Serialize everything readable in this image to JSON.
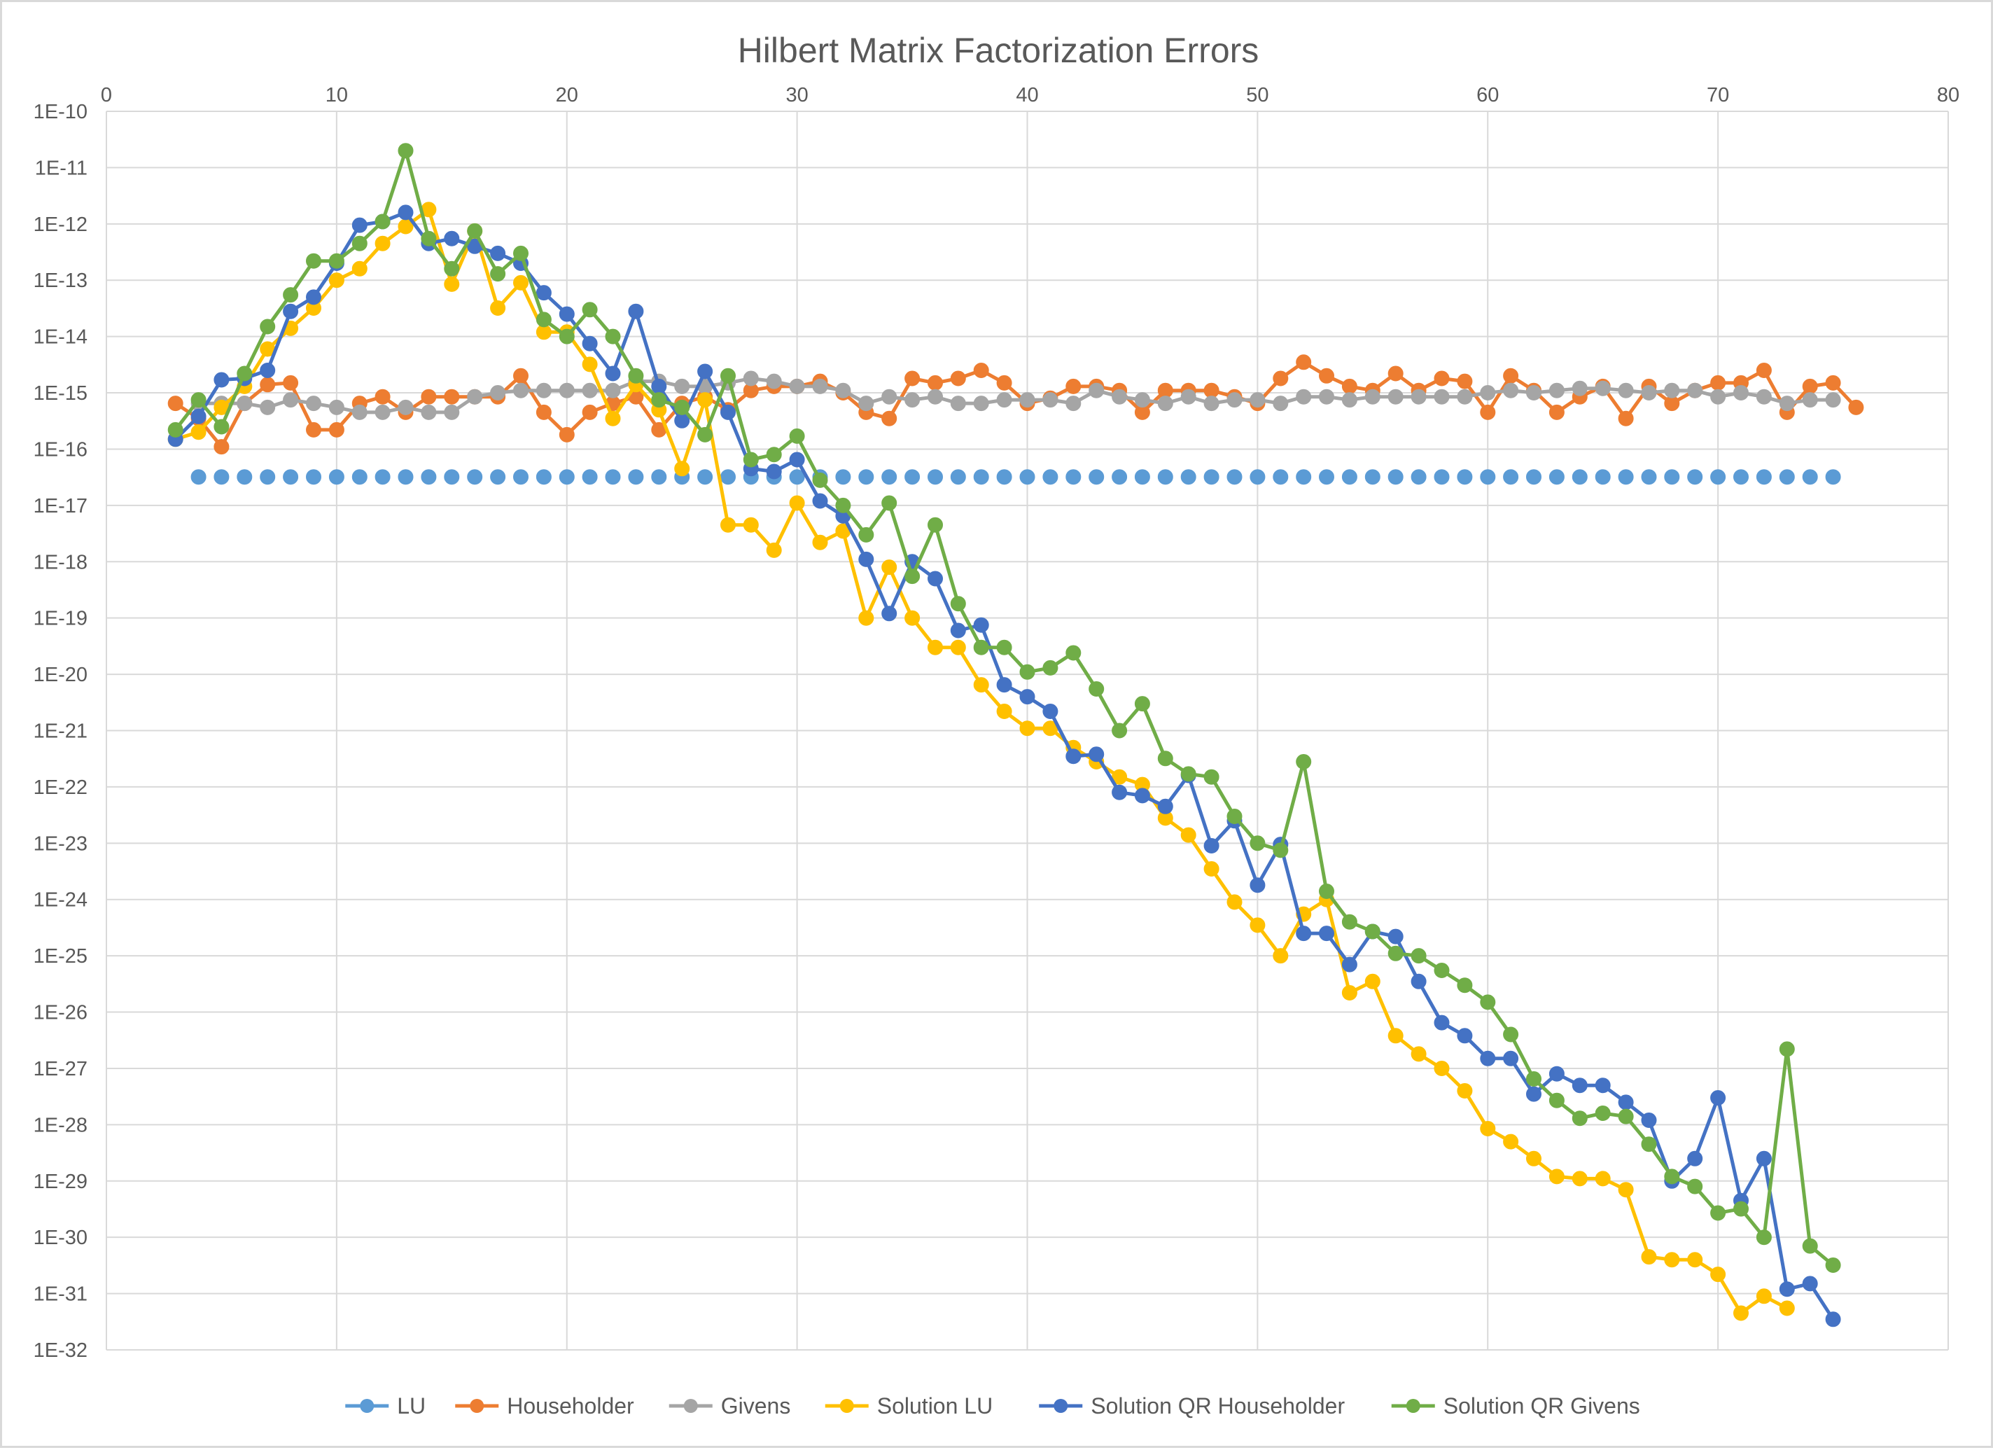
{
  "chart_data": {
    "type": "line",
    "title": "Hilbert Matrix Factorization Errors",
    "xlabel": "",
    "ylabel": "",
    "xlim": [
      0,
      80
    ],
    "x_ticks": [
      0,
      10,
      20,
      30,
      40,
      50,
      60,
      70,
      80
    ],
    "x_tick_labels": [
      "0",
      "10",
      "20",
      "30",
      "40",
      "50",
      "60",
      "70",
      "80"
    ],
    "y_scale": "log",
    "ylim": [
      1e-32,
      1e-10
    ],
    "y_ticks": [
      1e-10,
      1e-11,
      1e-12,
      1e-13,
      1e-14,
      1e-15,
      1e-16,
      1e-17,
      1e-18,
      1e-19,
      1e-20,
      1e-21,
      1e-22,
      1e-23,
      1e-24,
      1e-25,
      1e-26,
      1e-27,
      1e-28,
      1e-29,
      1e-30,
      1e-31,
      1e-32
    ],
    "y_tick_labels": [
      "1E-10",
      "1E-11",
      "1E-12",
      "1E-13",
      "1E-14",
      "1E-15",
      "1E-16",
      "1E-17",
      "1E-18",
      "1E-19",
      "1E-20",
      "1E-21",
      "1E-22",
      "1E-23",
      "1E-24",
      "1E-25",
      "1E-26",
      "1E-27",
      "1E-28",
      "1E-29",
      "1E-30",
      "1E-31",
      "1E-32"
    ],
    "grid": true,
    "legend_position": "bottom",
    "series": [
      {
        "name": "LU",
        "color": "#5b9bd5",
        "line": false,
        "x_start": 4,
        "y": [
          "3.2e-17",
          "3.2e-17",
          "3.2e-17",
          "3.2e-17",
          "3.2e-17",
          "3.2e-17",
          "3.2e-17",
          "3.2e-17",
          "3.2e-17",
          "3.2e-17",
          "3.2e-17",
          "3.2e-17",
          "3.2e-17",
          "3.2e-17",
          "3.2e-17",
          "3.2e-17",
          "3.2e-17",
          "3.2e-17",
          "3.2e-17",
          "3.2e-17",
          "3.2e-17",
          "3.2e-17",
          "3.2e-17",
          "3.2e-17",
          "3.2e-17",
          "3.2e-17",
          "3.2e-17",
          "3.2e-17",
          "3.2e-17",
          "3.2e-17",
          "3.2e-17",
          "3.2e-17",
          "3.2e-17",
          "3.2e-17",
          "3.2e-17",
          "3.2e-17",
          "3.2e-17",
          "3.2e-17",
          "3.2e-17",
          "3.2e-17",
          "3.2e-17",
          "3.2e-17",
          "3.2e-17",
          "3.2e-17",
          "3.2e-17",
          "3.2e-17",
          "3.2e-17",
          "3.2e-17",
          "3.2e-17",
          "3.2e-17",
          "3.2e-17",
          "3.2e-17",
          "3.2e-17",
          "3.2e-17",
          "3.2e-17",
          "3.2e-17",
          "3.2e-17",
          "3.2e-17",
          "3.2e-17",
          "3.2e-17",
          "3.2e-17",
          "3.2e-17",
          "3.2e-17",
          "3.2e-17",
          "3.2e-17",
          "3.2e-17",
          "3.2e-17",
          "3.2e-17",
          "3.2e-17",
          "3.2e-17",
          "3.2e-17",
          "3.2e-17"
        ]
      },
      {
        "name": "Householder",
        "color": "#ed7d31",
        "line": true,
        "x_start": 3,
        "y": [
          "6.5e-16",
          "3.5e-16",
          "1.1e-16",
          "6.5e-16",
          "1.4e-15",
          "1.5e-15",
          "2.2e-16",
          "2.2e-16",
          "6.5e-16",
          "8.5e-16",
          "4.5e-16",
          "8.5e-16",
          "8.5e-16",
          "8.5e-16",
          "8.5e-16",
          "2e-15",
          "4.5e-16",
          "1.8e-16",
          "4.5e-16",
          "6.5e-16",
          "8.5e-16",
          "2.2e-16",
          "6.5e-16",
          "8.5e-16",
          "5e-16",
          "1.1e-15",
          "1.3e-15",
          "1.3e-15",
          "1.6e-15",
          "1e-15",
          "4.5e-16",
          "3.5e-16",
          "1.8e-15",
          "1.5e-15",
          "1.8e-15",
          "2.5e-15",
          "1.5e-15",
          "6.5e-16",
          "8e-16",
          "1.3e-15",
          "1.3e-15",
          "1.1e-15",
          "4.5e-16",
          "1.1e-15",
          "1.1e-15",
          "1.1e-15",
          "8.5e-16",
          "6.5e-16",
          "1.8e-15",
          "3.5e-15",
          "2e-15",
          "1.3e-15",
          "1.1e-15",
          "2.2e-15",
          "1.1e-15",
          "1.8e-15",
          "1.6e-15",
          "4.5e-16",
          "2e-15",
          "1.1e-15",
          "4.5e-16",
          "8.5e-16",
          "1.3e-15",
          "3.5e-16",
          "1.3e-15",
          "6.5e-16",
          "1.1e-15",
          "1.5e-15",
          "1.5e-15",
          "2.5e-15",
          "4.5e-16",
          "1.3e-15",
          "1.5e-15",
          "5.5e-16"
        ]
      },
      {
        "name": "Givens",
        "color": "#a5a5a5",
        "line": true,
        "x_start": 4,
        "y": [
          "6.5e-16",
          "6.5e-16",
          "6.5e-16",
          "5.5e-16",
          "7.5e-16",
          "6.5e-16",
          "5.5e-16",
          "4.5e-16",
          "4.5e-16",
          "5.5e-16",
          "4.5e-16",
          "4.5e-16",
          "8.5e-16",
          "1e-15",
          "1.1e-15",
          "1.1e-15",
          "1.1e-15",
          "1.1e-15",
          "1.1e-15",
          "1.6e-15",
          "1.6e-15",
          "1.3e-15",
          "1.3e-15",
          "1.5e-15",
          "1.8e-15",
          "1.6e-15",
          "1.3e-15",
          "1.3e-15",
          "1.1e-15",
          "6.5e-16",
          "8.5e-16",
          "7.5e-16",
          "8.5e-16",
          "6.5e-16",
          "6.5e-16",
          "7.5e-16",
          "7.5e-16",
          "7.5e-16",
          "6.5e-16",
          "1.1e-15",
          "8.5e-16",
          "7.5e-16",
          "6.5e-16",
          "8.5e-16",
          "6.5e-16",
          "7.5e-16",
          "7.5e-16",
          "6.5e-16",
          "8.5e-16",
          "8.5e-16",
          "7.5e-16",
          "8.5e-16",
          "8.5e-16",
          "8.5e-16",
          "8.5e-16",
          "8.5e-16",
          "1e-15",
          "1.1e-15",
          "1e-15",
          "1.1e-15",
          "1.2e-15",
          "1.2e-15",
          "1.1e-15",
          "1e-15",
          "1.1e-15",
          "1.1e-15",
          "8.5e-16",
          "1e-15",
          "8.5e-16",
          "6.5e-16",
          "7.5e-16",
          "7.5e-16"
        ]
      },
      {
        "name": "Solution LU",
        "color": "#ffc000",
        "line": true,
        "x_start": 3,
        "y": [
          "1.5e-16",
          "2e-16",
          "5.5e-16",
          "1.3e-15",
          "6e-15",
          "1.4e-14",
          "3.2e-14",
          "1e-13",
          "1.6e-13",
          "4.5e-13",
          "9e-13",
          "1.8e-12",
          "8.5e-14",
          "7.5e-13",
          "3.2e-14",
          "9e-14",
          "1.2e-14",
          "1.2e-14",
          "3.2e-15",
          "3.5e-16",
          "1.4e-15",
          "5e-16",
          "4.5e-17",
          "7.5e-16",
          "4.5e-18",
          "4.5e-18",
          "1.6e-18",
          "1.1e-17",
          "2.2e-18",
          "3.5e-18",
          "1e-19",
          "8e-19",
          "1e-19",
          "3e-20",
          "3e-20",
          "6.5e-21",
          "2.2e-21",
          "1.1e-21",
          "1.1e-21",
          "5e-22",
          "2.8e-22",
          "1.5e-22",
          "1.1e-22",
          "2.8e-23",
          "1.4e-23",
          "3.5e-24",
          "9e-25",
          "3.5e-25",
          "1e-25",
          "5.5e-25",
          "1e-24",
          "2.2e-26",
          "3.5e-26",
          "3.8e-27",
          "1.8e-27",
          "1e-27",
          "4e-28",
          "8.5e-29",
          "5e-29",
          "2.5e-29",
          "1.2e-29",
          "1.1e-29",
          "1.1e-29",
          "7e-30",
          "4.5e-31",
          "4e-31",
          "4e-31",
          "2.2e-31",
          "4.5e-32",
          "9e-32",
          "5.5e-32"
        ]
      },
      {
        "name": "Solution QR Householder",
        "color": "#4472c4",
        "line": true,
        "x_start": 3,
        "y": [
          "1.5e-16",
          "3.8e-16",
          "1.7e-15",
          "1.8e-15",
          "2.5e-15",
          "2.8e-14",
          "5e-14",
          "2e-13",
          "9.5e-13",
          "1.1e-12",
          "1.6e-12",
          "4.5e-13",
          "5.5e-13",
          "4e-13",
          "3e-13",
          "2e-13",
          "6e-14",
          "2.5e-14",
          "7.5e-15",
          "2.2e-15",
          "2.8e-14",
          "1.3e-15",
          "3.2e-16",
          "2.4e-15",
          "4.5e-16",
          "4.5e-17",
          "4e-17",
          "6.5e-17",
          "1.2e-17",
          "6.5e-18",
          "1.1e-18",
          "1.2e-19",
          "1e-18",
          "5e-19",
          "6e-20",
          "7.5e-20",
          "6.5e-21",
          "4e-21",
          "2.2e-21",
          "3.5e-22",
          "3.8e-22",
          "8e-23",
          "7e-23",
          "4.5e-23",
          "1.6e-22",
          "9e-24",
          "2.5e-23",
          "1.8e-24",
          "9.5e-24",
          "2.5e-25",
          "2.5e-25",
          "7e-26",
          "2.7e-25",
          "2.2e-25",
          "3.5e-26",
          "6.5e-27",
          "3.8e-27",
          "1.5e-27",
          "1.5e-27",
          "3.5e-28",
          "8e-28",
          "5e-28",
          "5e-28",
          "2.5e-28",
          "1.2e-28",
          "1e-29",
          "2.5e-29",
          "3e-28",
          "4.5e-30",
          "2.5e-29",
          "1.2e-31",
          "1.5e-31",
          "3.5e-32"
        ]
      },
      {
        "name": "Solution QR Givens",
        "color": "#70ad47",
        "line": true,
        "x_start": 3,
        "y": [
          "2.2e-16",
          "7.5e-16",
          "2.5e-16",
          "2.2e-15",
          "1.5e-14",
          "5.5e-14",
          "2.2e-13",
          "2.2e-13",
          "4.5e-13",
          "1.1e-12",
          "2e-11",
          "5.5e-13",
          "1.6e-13",
          "7.5e-13",
          "1.3e-13",
          "3e-13",
          "2e-14",
          "1e-14",
          "3e-14",
          "1e-14",
          "2e-15",
          "7.5e-16",
          "5.5e-16",
          "1.8e-16",
          "2e-15",
          "6.5e-17",
          "8e-17",
          "1.7e-16",
          "2.8e-17",
          "1e-17",
          "3e-18",
          "1.1e-17",
          "5.5e-19",
          "4.5e-18",
          "1.8e-19",
          "3e-20",
          "3e-20",
          "1.1e-20",
          "1.3e-20",
          "2.4e-20",
          "5.5e-21",
          "1e-21",
          "3e-21",
          "3.2e-22",
          "1.7e-22",
          "1.5e-22",
          "3e-23",
          "1e-23",
          "7.5e-24",
          "2.8e-22",
          "1.4e-24",
          "4e-25",
          "2.7e-25",
          "1.1e-25",
          "1e-25",
          "5.5e-26",
          "3e-26",
          "1.5e-26",
          "4e-27",
          "6.5e-28",
          "2.7e-28",
          "1.3e-28",
          "1.6e-28",
          "1.4e-28",
          "4.5e-29",
          "1.2e-29",
          "8e-30",
          "2.7e-30",
          "3.2e-30",
          "1e-30",
          "2.2e-27",
          "7e-31",
          "3.2e-31"
        ]
      }
    ]
  }
}
